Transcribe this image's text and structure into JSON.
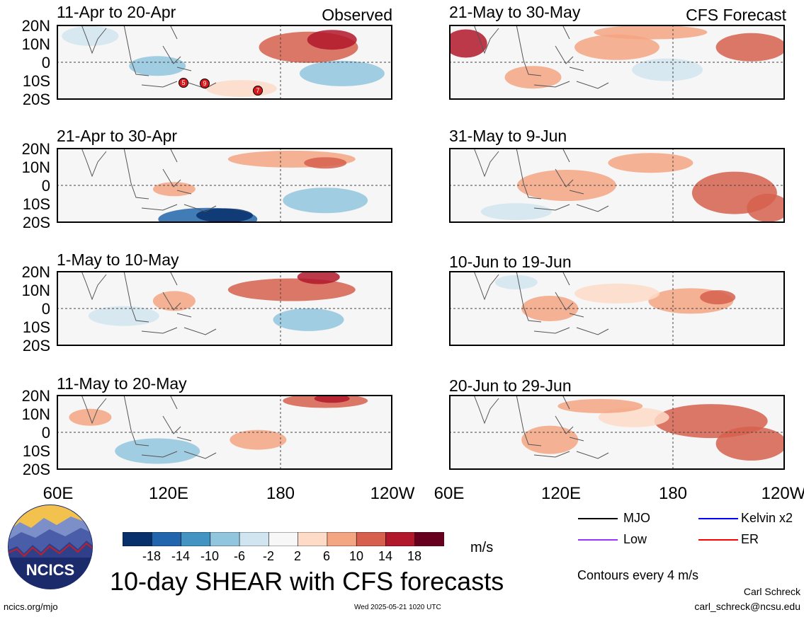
{
  "header": {
    "observed_label": "Observed",
    "forecast_label": "CFS Forecast"
  },
  "latitude_labels": [
    "20N",
    "10N",
    "0",
    "10S",
    "20S"
  ],
  "longitude_labels": [
    "60E",
    "120E",
    "180",
    "120W"
  ],
  "panels": {
    "observed": [
      {
        "title": "11-Apr to 20-Apr"
      },
      {
        "title": "21-Apr to 30-Apr"
      },
      {
        "title": "1-May to 10-May"
      },
      {
        "title": "11-May to 20-May"
      }
    ],
    "forecast": [
      {
        "title": "21-May to 30-May"
      },
      {
        "title": "31-May to 9-Jun"
      },
      {
        "title": "10-Jun to 19-Jun"
      },
      {
        "title": "20-Jun to 29-Jun"
      }
    ]
  },
  "storm_markers": [
    "5",
    "9",
    "7"
  ],
  "colorbar": {
    "ticks": [
      "-18",
      "-14",
      "-10",
      "-6",
      "-2",
      "2",
      "6",
      "10",
      "14",
      "18"
    ],
    "colors": [
      "#08306b",
      "#2166ac",
      "#4393c3",
      "#92c5de",
      "#d1e5f0",
      "#f7f7f7",
      "#fddbc7",
      "#f4a582",
      "#d6604d",
      "#b2182b",
      "#67001f"
    ],
    "units": "m/s"
  },
  "legend": {
    "items": [
      {
        "label": "MJO",
        "color": "#000000"
      },
      {
        "label": "Kelvin x2",
        "color": "#0000ff"
      },
      {
        "label": "Low",
        "color": "#9933ff"
      },
      {
        "label": "ER",
        "color": "#ff0000"
      }
    ],
    "contours_note": "Contours every 4 m/s"
  },
  "footer": {
    "main_title": "10-day SHEAR with CFS forecasts",
    "logo_text": "NCICS",
    "site": "ncics.org/mjo",
    "timestamp": "Wed 2025-05-21 1020 UTC",
    "author": "Carl Schreck",
    "email": "carl_schreck@ncsu.edu"
  }
}
